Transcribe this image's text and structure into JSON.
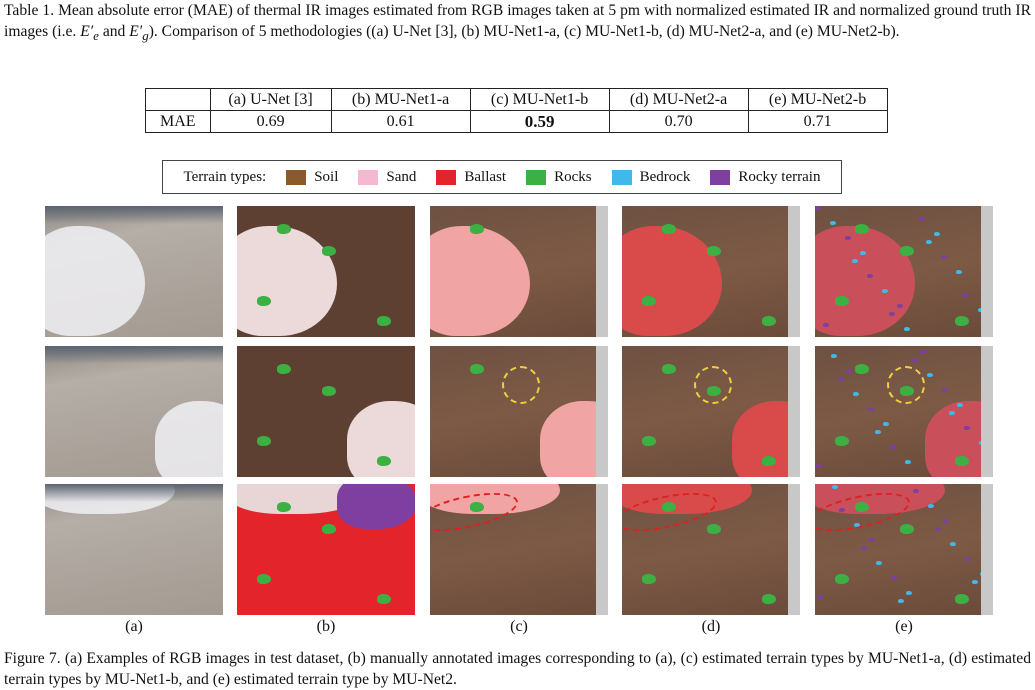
{
  "table_caption": {
    "before": "Table 1. Mean absolute error (MAE) of thermal IR images estimated from RGB images taken at 5 pm with normalized estimated IR and normalized ground truth IR images (i.e. ",
    "sym1": "E′",
    "sub1": "e",
    "and": " and ",
    "sym2": "E′",
    "sub2": "g",
    "after": "). Comparison of 5 methodologies ((a) U-Net [3], (b) MU-Net1-a, (c) MU-Net1-b, (d) MU-Net2-a, and (e) MU-Net2-b)."
  },
  "table": {
    "columns": [
      "(a) U-Net [3]",
      "(b) MU-Net1-a",
      "(c) MU-Net1-b",
      "(d) MU-Net2-a",
      "(e) MU-Net2-b"
    ],
    "row_label": "MAE",
    "values": [
      "0.69",
      "0.61",
      "0.59",
      "0.70",
      "0.71"
    ]
  },
  "legend": {
    "title": "Terrain types:",
    "items": [
      {
        "label": "Soil",
        "color": "#8b5a2b"
      },
      {
        "label": "Sand",
        "color": "#f5b8d0"
      },
      {
        "label": "Ballast",
        "color": "#e3242b"
      },
      {
        "label": "Rocks",
        "color": "#3cb043"
      },
      {
        "label": "Bedrock",
        "color": "#40b8e8"
      },
      {
        "label": "Rocky terrain",
        "color": "#7e3fa0"
      }
    ]
  },
  "panel_labels": [
    "(a)",
    "(b)",
    "(c)",
    "(d)",
    "(e)"
  ],
  "figure_caption": "Figure 7. (a) Examples of RGB images in test dataset, (b) manually annotated images corresponding to (a), (c) estimated terrain types by MU-Net1-a, (d) estimated terrain types by MU-Net1-b, and (e) estimated terrain type by MU-Net2."
}
